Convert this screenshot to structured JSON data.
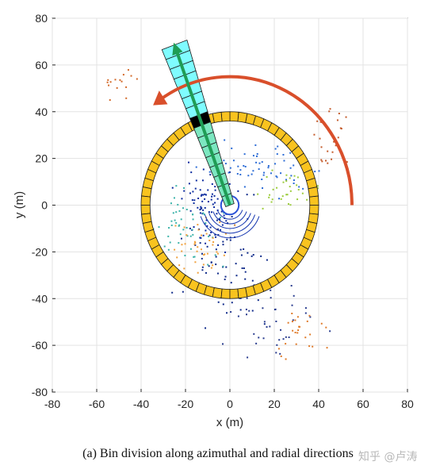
{
  "chart_data": {
    "type": "scatter",
    "xlabel": "x (m)",
    "ylabel": "y (m)",
    "xlim": [
      -80,
      80
    ],
    "ylim": [
      -80,
      80
    ],
    "xticks": [
      -80,
      -60,
      -40,
      -20,
      0,
      20,
      40,
      60,
      80
    ],
    "yticks": [
      -80,
      -60,
      -40,
      -20,
      0,
      20,
      40,
      60,
      80
    ],
    "grid": true,
    "ring": {
      "inner_radius": 36,
      "outer_radius": 40,
      "segments": 64,
      "color": "#f9c31f"
    },
    "radial_bin_strip": {
      "azimuth_deg": 110,
      "inner_radius": 0,
      "outer_radius": 73,
      "bins": 16,
      "inner_color": "#7ce7c0",
      "outer_color": "#7ffcff",
      "highlight_bin_radius": [
        36,
        40
      ]
    },
    "arc_arrow": {
      "radius": 55,
      "start_deg": 0,
      "end_deg": 125,
      "color": "#d94f2b"
    },
    "radial_arrow": {
      "azimuth_deg": 110,
      "from_radius": 0,
      "to_radius": 73,
      "color": "#1f9d55"
    },
    "points_clusters": [
      {
        "cx": -10,
        "cy": 0,
        "sx": 6,
        "sy": 8,
        "n": 90,
        "color": "#0b2a9e"
      },
      {
        "cx": 0,
        "cy": -25,
        "sx": 10,
        "sy": 12,
        "n": 80,
        "color": "#102b8a"
      },
      {
        "cx": 15,
        "cy": 15,
        "sx": 12,
        "sy": 5,
        "n": 60,
        "color": "#2c6cd6"
      },
      {
        "cx": -20,
        "cy": -10,
        "sx": 8,
        "sy": 8,
        "n": 50,
        "color": "#3bb3a9"
      },
      {
        "cx": -15,
        "cy": -18,
        "sx": 7,
        "sy": 6,
        "n": 40,
        "color": "#f0a03c"
      },
      {
        "cx": 25,
        "cy": 5,
        "sx": 8,
        "sy": 5,
        "n": 35,
        "color": "#9ccc3c"
      },
      {
        "cx": 20,
        "cy": -50,
        "sx": 10,
        "sy": 8,
        "n": 40,
        "color": "#2a3d8f"
      },
      {
        "cx": 45,
        "cy": 30,
        "sx": 5,
        "sy": 8,
        "n": 25,
        "color": "#c45a2a"
      },
      {
        "cx": -50,
        "cy": 52,
        "sx": 4,
        "sy": 3,
        "n": 15,
        "color": "#d36a2a"
      },
      {
        "cx": 30,
        "cy": -55,
        "sx": 6,
        "sy": 6,
        "n": 25,
        "color": "#e07b2a"
      }
    ]
  },
  "caption": "(a) Bin division along azimuthal and radial directions",
  "watermark": "知乎 @卢涛"
}
